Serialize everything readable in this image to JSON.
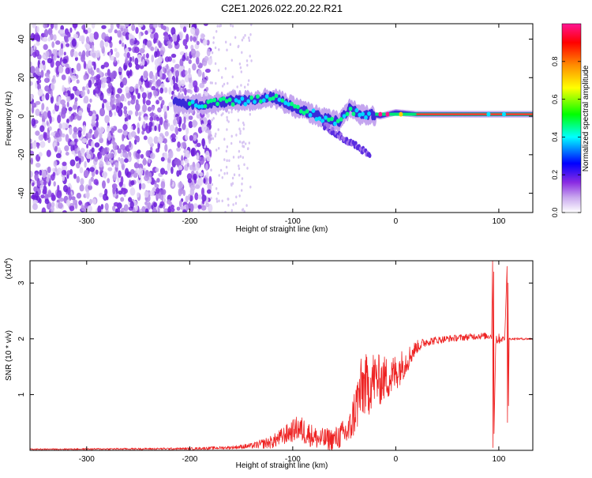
{
  "title": "C2E1.2026.022.20.22.R21",
  "chart_data": [
    {
      "type": "heatmap",
      "xlabel": "Height of straight line (km)",
      "ylabel": "Frequency (Hz)",
      "xlim": [
        -355,
        133
      ],
      "ylim": [
        -50,
        48
      ],
      "xticks": [
        -300,
        -200,
        -100,
        0,
        100
      ],
      "yticks": [
        -40,
        -20,
        0,
        20,
        40
      ],
      "colorbar": {
        "label": "Normalized spectral amplitude",
        "range": [
          0,
          1
        ],
        "ticks": [
          "0.0",
          "0.2",
          "0.4",
          "0.6",
          "0.8"
        ],
        "tick_values": [
          0.0,
          0.2,
          0.4,
          0.6,
          0.8
        ],
        "colors": [
          "#ffffff",
          "#8a2be2",
          "#0000ff",
          "#00ffff",
          "#00ff00",
          "#ffff00",
          "#ff8c00",
          "#ff0000",
          "#ff1493"
        ]
      },
      "ridge": {
        "x": [
          -210,
          -200,
          -180,
          -160,
          -140,
          -120,
          -100,
          -85,
          -70,
          -55,
          -45,
          -35,
          -25,
          -15,
          0,
          20,
          50,
          80,
          100,
          133
        ],
        "y": [
          7,
          6,
          6,
          8,
          8,
          10,
          5,
          2,
          -1,
          -3,
          4,
          1,
          1,
          0,
          2,
          1,
          1,
          1,
          1,
          1
        ]
      },
      "side_branch": {
        "x": [
          -70,
          -60,
          -50,
          -40,
          -30,
          -25
        ],
        "y": [
          -5,
          -8,
          -12,
          -15,
          -18,
          -22
        ]
      }
    },
    {
      "type": "line",
      "xlabel": "Height of straight line (km)",
      "ylabel": "SNR (10 * v/v)",
      "ymultiplier": "(x10",
      "yexponent": "4",
      "ymultiplier_close": ")",
      "xlim": [
        -355,
        133
      ],
      "ylim": [
        0,
        3.4
      ],
      "xticks": [
        -300,
        -200,
        -100,
        0,
        100
      ],
      "yticks": [
        1,
        2,
        3
      ],
      "color": "#ee2222",
      "envelope": {
        "x": [
          -355,
          -200,
          -160,
          -140,
          -120,
          -110,
          -100,
          -95,
          -85,
          -80,
          -75,
          -60,
          -45,
          -40,
          -35,
          -30,
          -27,
          -22,
          -15,
          -10,
          -5,
          0,
          10,
          20,
          30,
          50,
          80,
          90
        ],
        "y": [
          0.02,
          0.03,
          0.05,
          0.08,
          0.15,
          0.25,
          0.35,
          0.4,
          0.3,
          0.25,
          0.2,
          0.2,
          0.35,
          0.7,
          1.0,
          1.2,
          1.1,
          1.3,
          1.25,
          1.3,
          1.3,
          1.4,
          1.6,
          1.85,
          1.95,
          2.0,
          2.05,
          2.05
        ]
      },
      "amplitude": {
        "x": [
          -355,
          -200,
          -160,
          -140,
          -120,
          -100,
          -90,
          -80,
          -60,
          -45,
          -40,
          -35,
          -30,
          -25,
          -20,
          -10,
          0,
          10,
          20,
          30,
          50,
          90
        ],
        "y": [
          0.01,
          0.02,
          0.03,
          0.05,
          0.12,
          0.2,
          0.25,
          0.2,
          0.2,
          0.3,
          0.45,
          0.6,
          0.6,
          0.5,
          0.5,
          0.4,
          0.35,
          0.25,
          0.12,
          0.08,
          0.06,
          0.06
        ]
      },
      "spikes": [
        {
          "x": 94,
          "y": 3.4,
          "min": 0.05
        },
        {
          "x": 95,
          "y": 3.2,
          "min": 0.3
        },
        {
          "x": 108,
          "y": 3.3,
          "min": 0.5
        },
        {
          "x": 109,
          "y": 3.0,
          "min": 0.8
        }
      ],
      "tail": {
        "x": [
          110,
          133
        ],
        "y": [
          2.0,
          2.0
        ]
      }
    }
  ]
}
